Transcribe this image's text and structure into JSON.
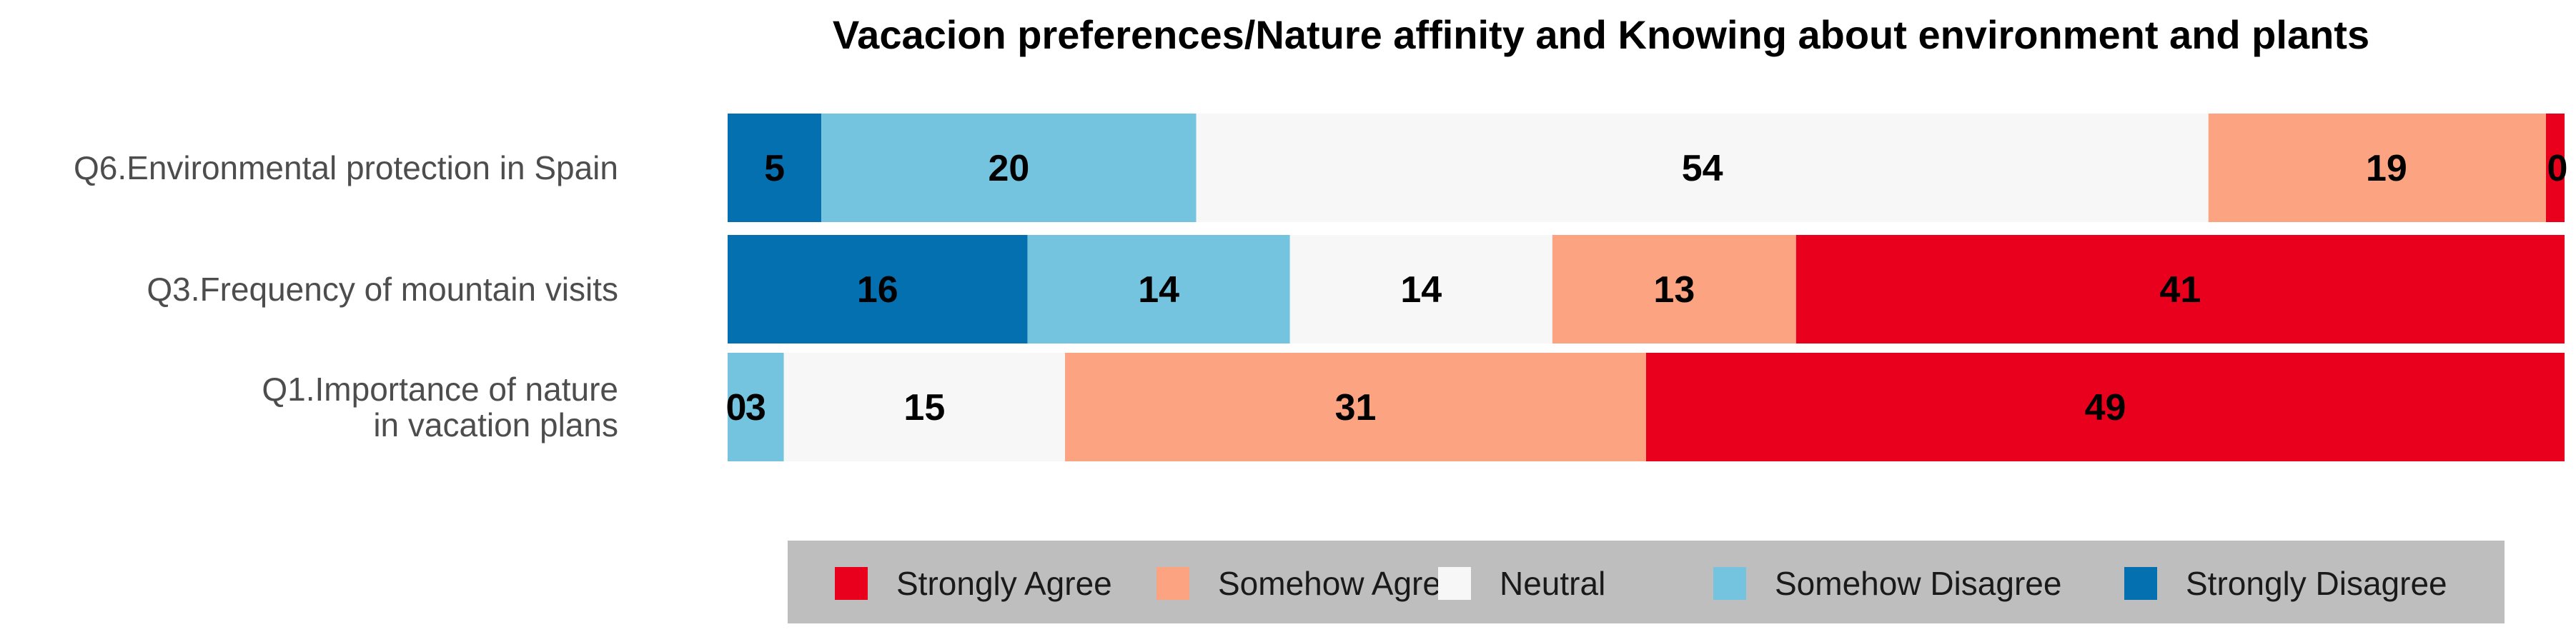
{
  "chart_data": {
    "type": "bar",
    "orientation": "horizontal",
    "stacked": true,
    "title": "Vacacion preferences/Nature affinity and Knowing about environment and plants",
    "xlabel": "",
    "ylabel": "",
    "xlim": [
      0,
      100
    ],
    "grid": false,
    "legend_position": "bottom",
    "categories": [
      [
        "Q6.Environmental protection in Spain"
      ],
      [
        "Q3.Frequency of mountain visits"
      ],
      [
        "Q1.Importance of nature",
        "in vacation plans"
      ]
    ],
    "series": [
      {
        "name": "Strongly Disagree",
        "color": "#0570b0",
        "values": [
          5,
          16,
          0
        ]
      },
      {
        "name": "Somehow Disagree",
        "color": "#74c4e0",
        "values": [
          20,
          14,
          3
        ]
      },
      {
        "name": "Neutral",
        "color": "#f7f7f7",
        "values": [
          54,
          14,
          15
        ]
      },
      {
        "name": "Somehow Agree",
        "color": "#fca482",
        "values": [
          19,
          13,
          31
        ]
      },
      {
        "name": "Strongly Agree",
        "color": "#e8001c",
        "values": [
          0,
          41,
          49
        ]
      }
    ],
    "legend_order": [
      "Strongly Agree",
      "Somehow Agree",
      "Neutral",
      "Somehow Disagree",
      "Strongly Disagree"
    ],
    "legend_background": "#bebebe"
  }
}
